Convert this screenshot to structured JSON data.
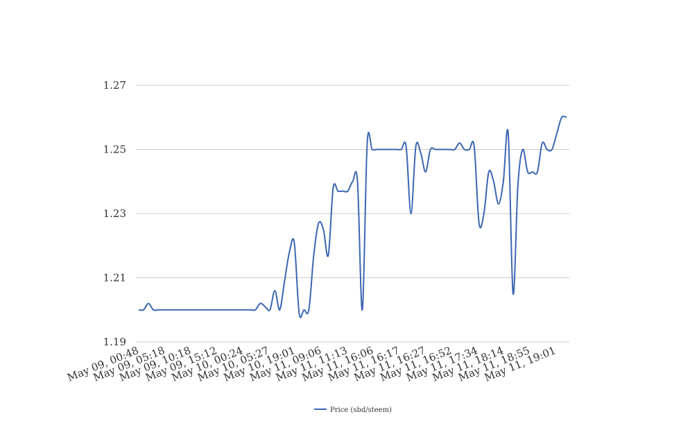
{
  "chart_data": {
    "type": "line",
    "title": "",
    "xlabel": "",
    "ylabel": "",
    "ylim": [
      1.19,
      1.27
    ],
    "yticks": [
      "1.27",
      "1.25",
      "1.23",
      "1.21",
      "1.19"
    ],
    "y_tick_values": [
      1.27,
      1.25,
      1.23,
      1.21,
      1.19
    ],
    "grid": true,
    "legend_position": "bottom",
    "colors": {
      "series": "#3a66b1",
      "grid": "#cccccc",
      "text": "#333333"
    },
    "x_tick_labels": [
      "May 09, 00:48",
      "May 09, 05:18",
      "May 09, 10:18",
      "May 09, 15:12",
      "May 10, 00:24",
      "May 10, 05:27",
      "May 10, 19:01",
      "May 11, 09:06",
      "May 11, 11:13",
      "May 11, 16:06",
      "May 11, 16:17",
      "May 11, 16:27",
      "May 11, 16:52",
      "May 11, 17:34",
      "May 11, 18:14",
      "May 11, 18:55",
      "May 11, 19:01"
    ],
    "series": [
      {
        "name": "Price (sbd/steem)",
        "values": [
          1.2,
          1.2,
          1.202,
          1.2,
          1.2,
          1.2,
          1.2,
          1.2,
          1.2,
          1.2,
          1.2,
          1.2,
          1.2,
          1.2,
          1.2,
          1.2,
          1.2,
          1.2,
          1.2,
          1.2,
          1.2,
          1.2,
          1.2,
          1.2,
          1.2,
          1.202,
          1.201,
          1.2,
          1.206,
          1.2,
          1.209,
          1.218,
          1.221,
          1.199,
          1.2,
          1.2,
          1.217,
          1.227,
          1.225,
          1.217,
          1.238,
          1.237,
          1.237,
          1.237,
          1.24,
          1.24,
          1.2,
          1.252,
          1.25,
          1.25,
          1.25,
          1.25,
          1.25,
          1.25,
          1.25,
          1.251,
          1.23,
          1.251,
          1.249,
          1.243,
          1.25,
          1.25,
          1.25,
          1.25,
          1.25,
          1.25,
          1.252,
          1.25,
          1.25,
          1.251,
          1.227,
          1.23,
          1.243,
          1.24,
          1.233,
          1.24,
          1.255,
          1.205,
          1.239,
          1.25,
          1.243,
          1.243,
          1.243,
          1.252,
          1.25,
          1.25,
          1.255,
          1.26,
          1.26
        ]
      }
    ]
  }
}
